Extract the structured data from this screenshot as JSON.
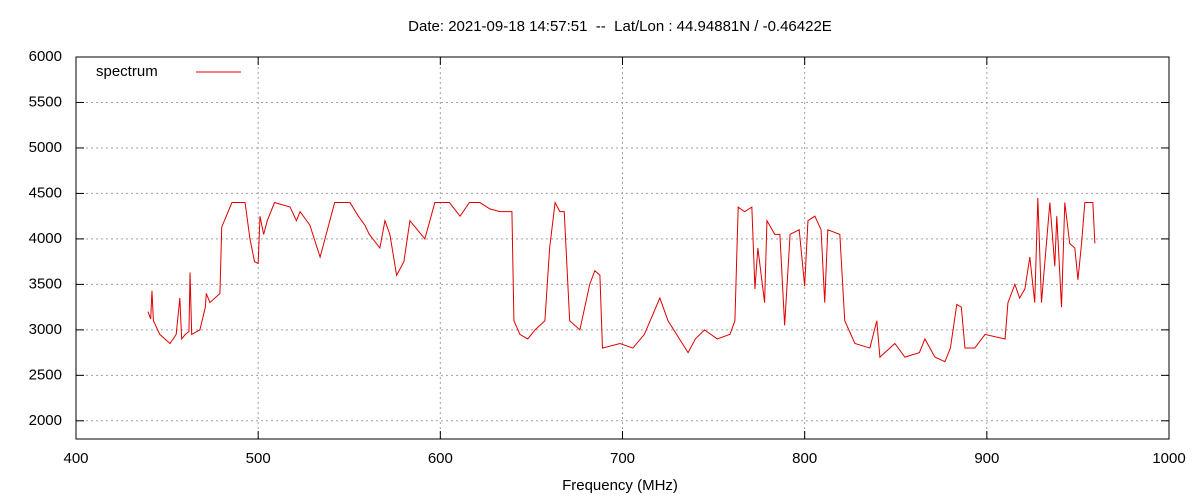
{
  "chart_data": {
    "type": "line",
    "title": "Date: 2021-09-18 14:57:51  --  Lat/Lon : 44.94881N / -0.46422E",
    "x_label": "Frequency (MHz)",
    "xlim": [
      400,
      1000
    ],
    "xticks": [
      400,
      500,
      600,
      700,
      800,
      900,
      1000
    ],
    "ylim": [
      1800,
      6000
    ],
    "yticks": [
      2000,
      2500,
      3000,
      3500,
      4000,
      4500,
      5000,
      5500,
      6000
    ],
    "grid": true,
    "legend": "top-left",
    "x": [
      439.5,
      441,
      441.7,
      442.5,
      446,
      451.6,
      455,
      457,
      458,
      460,
      462,
      462.6,
      463.5,
      468,
      471,
      471.5,
      473.5,
      479,
      480,
      485.6,
      492.8,
      495.5,
      498,
      500,
      501,
      503,
      505,
      509,
      517.5,
      521,
      523,
      528.4,
      534,
      542,
      550.4,
      555,
      558.6,
      561,
      566.8,
      569.6,
      572.3,
      576,
      580,
      583.3,
      591.5,
      597,
      605,
      610.8,
      616,
      621.7,
      627.2,
      632.7,
      639.3,
      640.4,
      643.7,
      648,
      652,
      657.4,
      660,
      663,
      665.6,
      668,
      671,
      676.6,
      682,
      684.8,
      687.6,
      689,
      698.6,
      705.7,
      712,
      720.5,
      725,
      736,
      740,
      745,
      752,
      759,
      761.7,
      763.5,
      767,
      771,
      772.7,
      774.3,
      778,
      779.3,
      783.6,
      786.4,
      789,
      792,
      797,
      800,
      801.8,
      805.6,
      809,
      811,
      812.7,
      819.3,
      822,
      827.6,
      835.8,
      839.6,
      841.3,
      849.5,
      855,
      863,
      866,
      871.5,
      877,
      880,
      883.5,
      886,
      888,
      893.4,
      899,
      910,
      911.6,
      915.4,
      918,
      920.9,
      923.6,
      926.3,
      928,
      930,
      934.6,
      937.3,
      938.4,
      941,
      942.8,
      945.5,
      948.3,
      950,
      952,
      953.8,
      958.2,
      959.3
    ],
    "series": [
      {
        "name": "spectrum",
        "color": "#e00000",
        "values": [
          3200,
          3120,
          3430,
          3100,
          2950,
          2850,
          2950,
          3350,
          2900,
          2950,
          2980,
          3630,
          2950,
          3000,
          3250,
          3400,
          3300,
          3400,
          4130,
          4400,
          4400,
          4000,
          3750,
          3730,
          4250,
          4050,
          4200,
          4400,
          4350,
          4200,
          4300,
          4150,
          3800,
          4400,
          4400,
          4250,
          4150,
          4050,
          3900,
          4200,
          4050,
          3600,
          3750,
          4200,
          4000,
          4400,
          4400,
          4250,
          4400,
          4400,
          4330,
          4300,
          4300,
          3100,
          2950,
          2900,
          3000,
          3100,
          3900,
          4400,
          4300,
          4300,
          3100,
          3000,
          3500,
          3650,
          3600,
          2800,
          2850,
          2800,
          2950,
          3350,
          3100,
          2750,
          2900,
          3000,
          2900,
          2950,
          3100,
          4350,
          4300,
          4350,
          3450,
          3900,
          3300,
          4200,
          4050,
          4050,
          3050,
          4050,
          4100,
          3480,
          4200,
          4250,
          4100,
          3300,
          4100,
          4050,
          3100,
          2850,
          2800,
          3100,
          2700,
          2850,
          2700,
          2750,
          2900,
          2700,
          2650,
          2800,
          3280,
          3250,
          2800,
          2800,
          2950,
          2900,
          3300,
          3500,
          3350,
          3450,
          3800,
          3300,
          4450,
          3300,
          4400,
          3700,
          4250,
          3250,
          4400,
          3950,
          3900,
          3550,
          3950,
          4400,
          4400,
          3950
        ]
      }
    ]
  }
}
